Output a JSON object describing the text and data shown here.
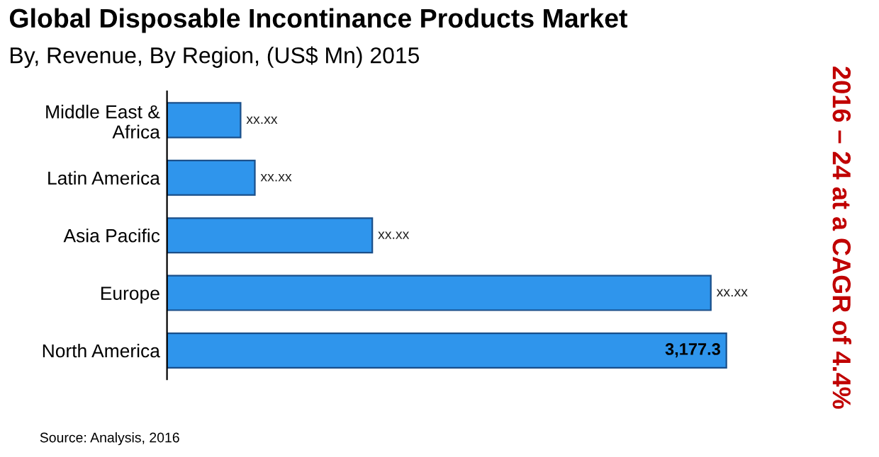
{
  "chart_data": {
    "type": "bar",
    "orientation": "horizontal",
    "title": "Global Disposable Incontinance Products Market",
    "subtitle": "By, Revenue, By Region, (US$ Mn) 2015",
    "categories": [
      "Middle East &\nAfrica",
      "Latin America",
      "Asia Pacific",
      "Europe",
      "North America"
    ],
    "values": [
      418,
      499,
      1166,
      3089,
      3177.3
    ],
    "value_labels": [
      "xx.xx",
      "xx.xx",
      "xx.xx",
      "xx.xx",
      "3,177.3"
    ],
    "color": "#2f95ec",
    "annotations": [
      "2016 – 24 at a CAGR of 4.4%",
      "Source: Analysis, 2016"
    ]
  }
}
